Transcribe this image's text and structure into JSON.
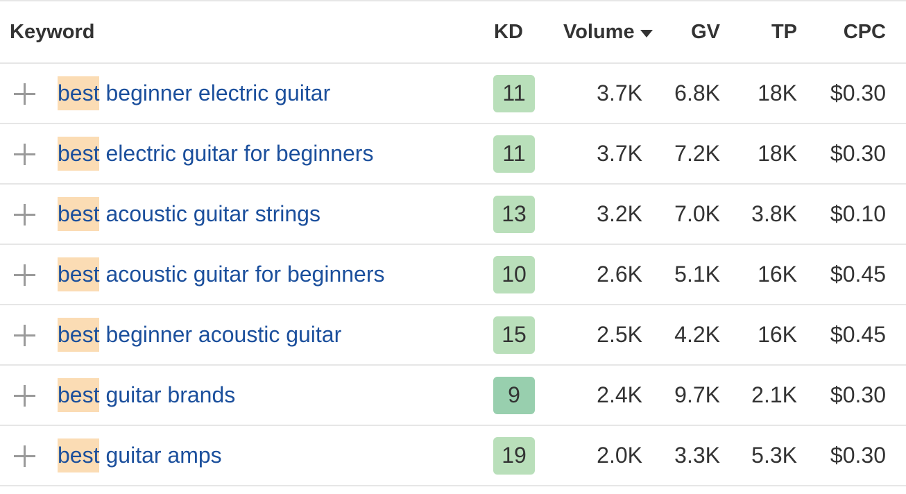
{
  "header": {
    "keyword": "Keyword",
    "kd": "KD",
    "volume": "Volume",
    "gv": "GV",
    "tp": "TP",
    "cpc": "CPC"
  },
  "highlight_term": "best",
  "colors": {
    "keyword_link": "#1b4f9c",
    "highlight": "#fbdcb4",
    "kd_badge": "#b9dfba",
    "kd_badge_easy": "#98cfae"
  },
  "rows": [
    {
      "highlight": "best",
      "rest": "beginner electric guitar",
      "kd": "11",
      "volume": "3.7K",
      "gv": "6.8K",
      "tp": "18K",
      "cpc": "$0.30"
    },
    {
      "highlight": "best",
      "rest": "electric guitar for beginners",
      "kd": "11",
      "volume": "3.7K",
      "gv": "7.2K",
      "tp": "18K",
      "cpc": "$0.30"
    },
    {
      "highlight": "best",
      "rest": "acoustic guitar strings",
      "kd": "13",
      "volume": "3.2K",
      "gv": "7.0K",
      "tp": "3.8K",
      "cpc": "$0.10"
    },
    {
      "highlight": "best",
      "rest": "acoustic guitar for beginners",
      "kd": "10",
      "volume": "2.6K",
      "gv": "5.1K",
      "tp": "16K",
      "cpc": "$0.45"
    },
    {
      "highlight": "best",
      "rest": "beginner acoustic guitar",
      "kd": "15",
      "volume": "2.5K",
      "gv": "4.2K",
      "tp": "16K",
      "cpc": "$0.45"
    },
    {
      "highlight": "best",
      "rest": "guitar brands",
      "kd": "9",
      "volume": "2.4K",
      "gv": "9.7K",
      "tp": "2.1K",
      "cpc": "$0.30"
    },
    {
      "highlight": "best",
      "rest": "guitar amps",
      "kd": "19",
      "volume": "2.0K",
      "gv": "3.3K",
      "tp": "5.3K",
      "cpc": "$0.30"
    }
  ]
}
